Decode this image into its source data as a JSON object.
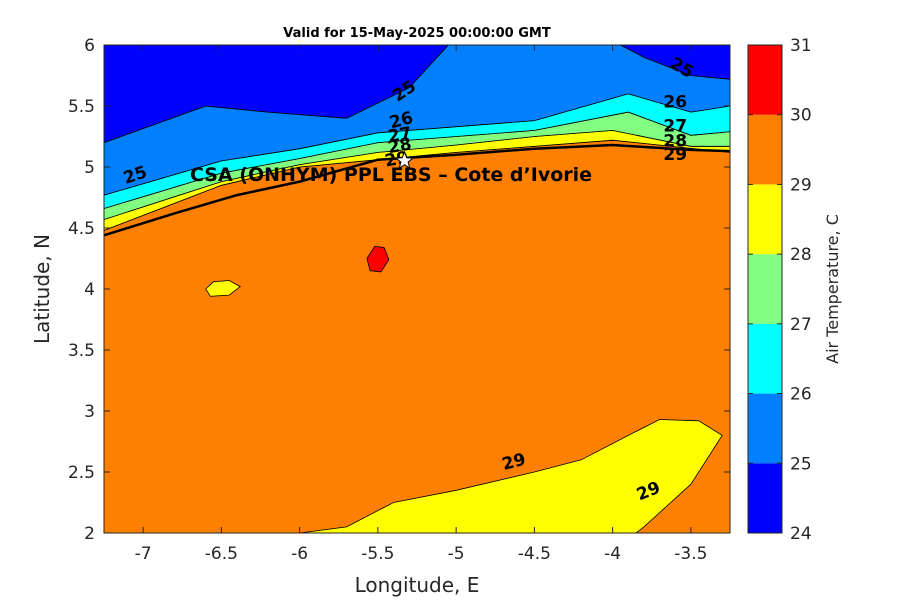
{
  "chart_data": {
    "type": "heatmap",
    "title": "Valid for 15-May-2025 00:00:00 GMT",
    "xlabel": "Longitude, E",
    "ylabel": "Latitude, N",
    "xlim": [
      -7.25,
      -3.25
    ],
    "ylim": [
      2,
      6
    ],
    "xticks": [
      -7,
      -6.5,
      -6,
      -5.5,
      -5,
      -4.5,
      -4,
      -3.5
    ],
    "xtick_labels": [
      "-7",
      "-6.5",
      "-6",
      "-5.5",
      "-5",
      "-4.5",
      "-4",
      "-3.5"
    ],
    "yticks": [
      2,
      2.5,
      3,
      3.5,
      4,
      4.5,
      5,
      5.5,
      6
    ],
    "ytick_labels": [
      "2",
      "2.5",
      "3",
      "3.5",
      "4",
      "4.5",
      "5",
      "5.5",
      "6"
    ],
    "colorbar": {
      "label": "Air Temperature, C",
      "levels": [
        24,
        25,
        26,
        27,
        28,
        29,
        30,
        31
      ],
      "tick_labels": [
        "24",
        "25",
        "26",
        "27",
        "28",
        "29",
        "30",
        "31"
      ],
      "colors": [
        "#0000ff",
        "#0080ff",
        "#00ffff",
        "#80ff80",
        "#ffff00",
        "#ff8000",
        "#ff0000",
        "#800000"
      ]
    },
    "site": {
      "label": "CSA (ONHYM) PPL EBS  – Cote d’Ivorie",
      "lon": -5.33,
      "lat": 5.05
    },
    "contour_labels": [
      {
        "text": "25",
        "lon": -7.05,
        "lat": 4.93,
        "angle": -18
      },
      {
        "text": "25",
        "lon": -5.33,
        "lat": 5.62,
        "angle": -35
      },
      {
        "text": "25",
        "lon": -3.56,
        "lat": 5.81,
        "angle": 30
      },
      {
        "text": "26",
        "lon": -5.35,
        "lat": 5.38,
        "angle": -15
      },
      {
        "text": "26",
        "lon": -3.6,
        "lat": 5.53,
        "angle": 0
      },
      {
        "text": "27",
        "lon": -5.36,
        "lat": 5.26,
        "angle": -10
      },
      {
        "text": "27",
        "lon": -3.6,
        "lat": 5.33,
        "angle": 0
      },
      {
        "text": "28",
        "lon": -5.36,
        "lat": 5.17,
        "angle": -10
      },
      {
        "text": "28",
        "lon": -3.6,
        "lat": 5.21,
        "angle": 0
      },
      {
        "text": "29",
        "lon": -5.38,
        "lat": 5.06,
        "angle": -10
      },
      {
        "text": "29",
        "lon": -3.6,
        "lat": 5.1,
        "angle": 0
      },
      {
        "text": "29",
        "lon": -4.63,
        "lat": 2.58,
        "angle": -15
      },
      {
        "text": "29",
        "lon": -3.77,
        "lat": 2.34,
        "angle": -22
      }
    ],
    "regions": [
      {
        "level": 29,
        "points": [
          [
            -7.25,
            2
          ],
          [
            -3.25,
            2
          ],
          [
            -3.25,
            5.12
          ],
          [
            -4,
            5.22
          ],
          [
            -5,
            5.12
          ],
          [
            -6,
            5
          ],
          [
            -6.5,
            4.85
          ],
          [
            -7.25,
            4.48
          ]
        ]
      },
      {
        "level": 28,
        "points": [
          [
            -7.25,
            4.48
          ],
          [
            -6.5,
            4.85
          ],
          [
            -6,
            5
          ],
          [
            -5,
            5.12
          ],
          [
            -4,
            5.22
          ],
          [
            -3.25,
            5.12
          ],
          [
            -3.25,
            5.17
          ],
          [
            -3.5,
            5.17
          ],
          [
            -4,
            5.3
          ],
          [
            -4.5,
            5.25
          ],
          [
            -5,
            5.18
          ],
          [
            -5.5,
            5.12
          ],
          [
            -6,
            5.02
          ],
          [
            -6.5,
            4.88
          ],
          [
            -7.25,
            4.57
          ]
        ]
      },
      {
        "level": 27,
        "points": [
          [
            -7.25,
            4.57
          ],
          [
            -6.5,
            4.88
          ],
          [
            -6,
            5.02
          ],
          [
            -5.5,
            5.12
          ],
          [
            -5,
            5.18
          ],
          [
            -4.5,
            5.25
          ],
          [
            -4,
            5.3
          ],
          [
            -3.5,
            5.17
          ],
          [
            -3.25,
            5.17
          ],
          [
            -3.25,
            5.29
          ],
          [
            -3.5,
            5.26
          ],
          [
            -3.9,
            5.45
          ],
          [
            -4.5,
            5.3
          ],
          [
            -5,
            5.25
          ],
          [
            -5.5,
            5.2
          ],
          [
            -6,
            5.07
          ],
          [
            -6.5,
            4.95
          ],
          [
            -7.25,
            4.66
          ]
        ]
      },
      {
        "level": 26,
        "points": [
          [
            -7.25,
            4.66
          ],
          [
            -6.5,
            4.95
          ],
          [
            -6,
            5.07
          ],
          [
            -5.5,
            5.2
          ],
          [
            -5,
            5.25
          ],
          [
            -4.5,
            5.3
          ],
          [
            -3.9,
            5.45
          ],
          [
            -3.5,
            5.26
          ],
          [
            -3.25,
            5.29
          ],
          [
            -3.25,
            5.5
          ],
          [
            -3.5,
            5.45
          ],
          [
            -3.9,
            5.6
          ],
          [
            -4.5,
            5.38
          ],
          [
            -5,
            5.33
          ],
          [
            -5.5,
            5.28
          ],
          [
            -6,
            5.15
          ],
          [
            -6.5,
            5.05
          ],
          [
            -7.25,
            4.77
          ]
        ]
      },
      {
        "level": 25,
        "points": [
          [
            -7.25,
            4.77
          ],
          [
            -6.5,
            5.05
          ],
          [
            -6,
            5.15
          ],
          [
            -5.5,
            5.28
          ],
          [
            -5,
            5.33
          ],
          [
            -4.5,
            5.38
          ],
          [
            -3.9,
            5.6
          ],
          [
            -3.5,
            5.45
          ],
          [
            -3.25,
            5.5
          ],
          [
            -3.25,
            5.72
          ],
          [
            -3.5,
            5.75
          ],
          [
            -3.8,
            5.9
          ],
          [
            -3.95,
            6
          ],
          [
            -5.05,
            6
          ],
          [
            -5.3,
            5.65
          ],
          [
            -5.7,
            5.4
          ],
          [
            -6.2,
            5.45
          ],
          [
            -6.6,
            5.5
          ],
          [
            -7.25,
            5.2
          ]
        ]
      },
      {
        "level": 24,
        "points": [
          [
            -7.25,
            5.2
          ],
          [
            -6.6,
            5.5
          ],
          [
            -6.2,
            5.45
          ],
          [
            -5.7,
            5.4
          ],
          [
            -5.3,
            5.65
          ],
          [
            -5.05,
            6
          ],
          [
            -7.25,
            6
          ]
        ]
      },
      {
        "level": 24,
        "points": [
          [
            -3.95,
            6
          ],
          [
            -3.8,
            5.9
          ],
          [
            -3.5,
            5.75
          ],
          [
            -3.25,
            5.72
          ],
          [
            -3.25,
            6
          ]
        ]
      },
      {
        "level": 28,
        "points": [
          [
            -6.0,
            2
          ],
          [
            -5.7,
            2.05
          ],
          [
            -5.4,
            2.25
          ],
          [
            -5.0,
            2.35
          ],
          [
            -4.5,
            2.5
          ],
          [
            -4.2,
            2.6
          ],
          [
            -3.9,
            2.8
          ],
          [
            -3.7,
            2.93
          ],
          [
            -3.45,
            2.92
          ],
          [
            -3.3,
            2.8
          ],
          [
            -3.5,
            2.4
          ],
          [
            -3.8,
            2.05
          ],
          [
            -3.85,
            2
          ]
        ]
      },
      {
        "level": 28,
        "points": [
          [
            -6.6,
            4.0
          ],
          [
            -6.55,
            4.06
          ],
          [
            -6.45,
            4.07
          ],
          [
            -6.38,
            4.02
          ],
          [
            -6.45,
            3.95
          ],
          [
            -6.57,
            3.94
          ]
        ]
      },
      {
        "level": 30,
        "points": [
          [
            -5.57,
            4.25
          ],
          [
            -5.52,
            4.35
          ],
          [
            -5.46,
            4.34
          ],
          [
            -5.43,
            4.24
          ],
          [
            -5.48,
            4.14
          ],
          [
            -5.55,
            4.15
          ]
        ]
      }
    ],
    "coastline": [
      [
        -7.25,
        4.44
      ],
      [
        -6.8,
        4.62
      ],
      [
        -6.4,
        4.77
      ],
      [
        -6,
        4.88
      ],
      [
        -5.5,
        5.06
      ],
      [
        -5,
        5.1
      ],
      [
        -4.5,
        5.15
      ],
      [
        -4,
        5.18
      ],
      [
        -3.5,
        5.14
      ],
      [
        -3.25,
        5.13
      ]
    ]
  }
}
